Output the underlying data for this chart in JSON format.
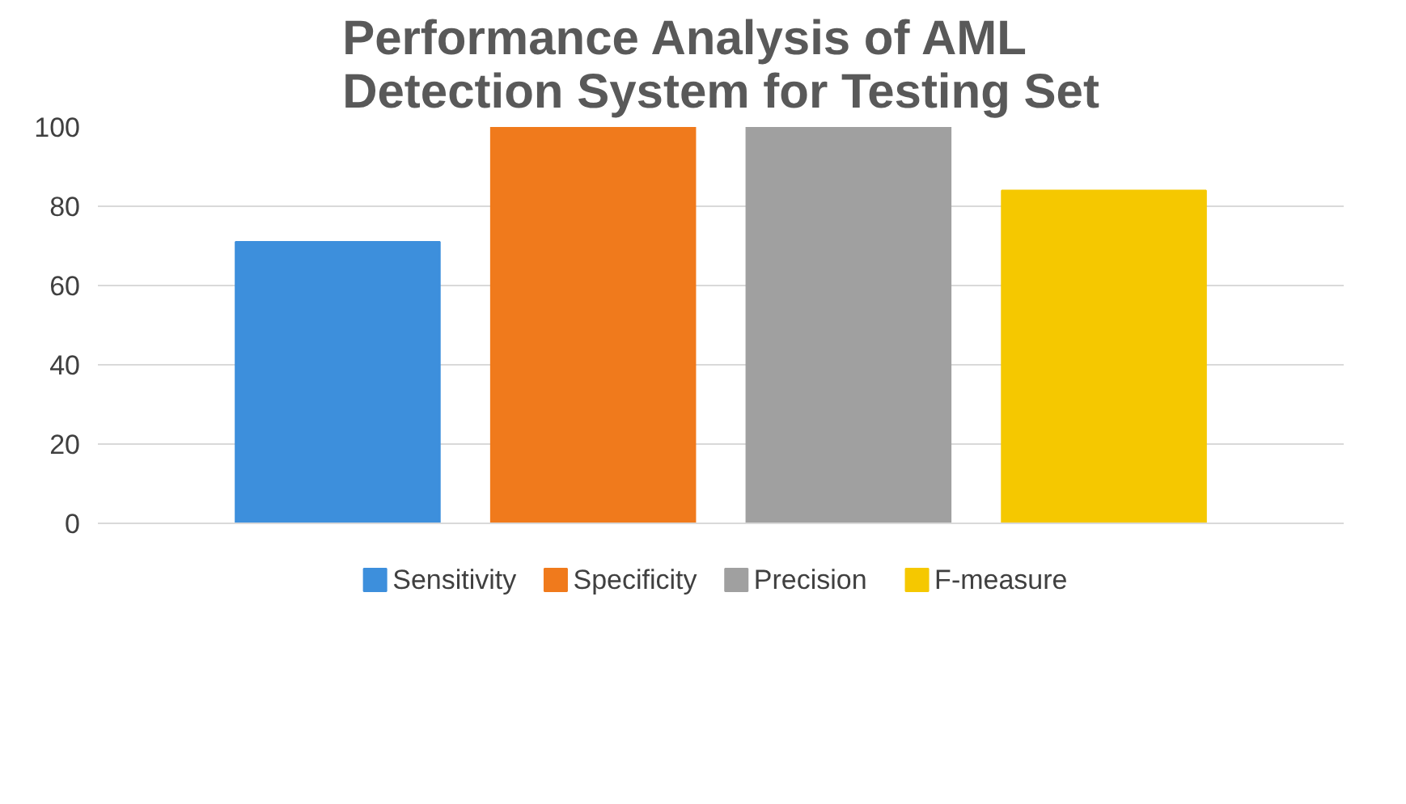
{
  "chart_data": {
    "type": "bar",
    "title": "Performance Analysis of AML\nDetection System for Testing Set",
    "categories": [
      null
    ],
    "series": [
      {
        "name": "Sensitivity",
        "color": "#3d8fdc",
        "values": [
          71
        ]
      },
      {
        "name": "Specificity",
        "color": "#f07a1c",
        "values": [
          100
        ]
      },
      {
        "name": "Precision",
        "color": "#a0a0a0",
        "values": [
          100
        ]
      },
      {
        "name": "F-measure",
        "color": "#f5c800",
        "values": [
          84
        ]
      }
    ],
    "ylim": [
      0,
      100
    ],
    "yticks": [
      0,
      20,
      40,
      60,
      80,
      100
    ],
    "grid": "y",
    "legend": "bottom"
  }
}
